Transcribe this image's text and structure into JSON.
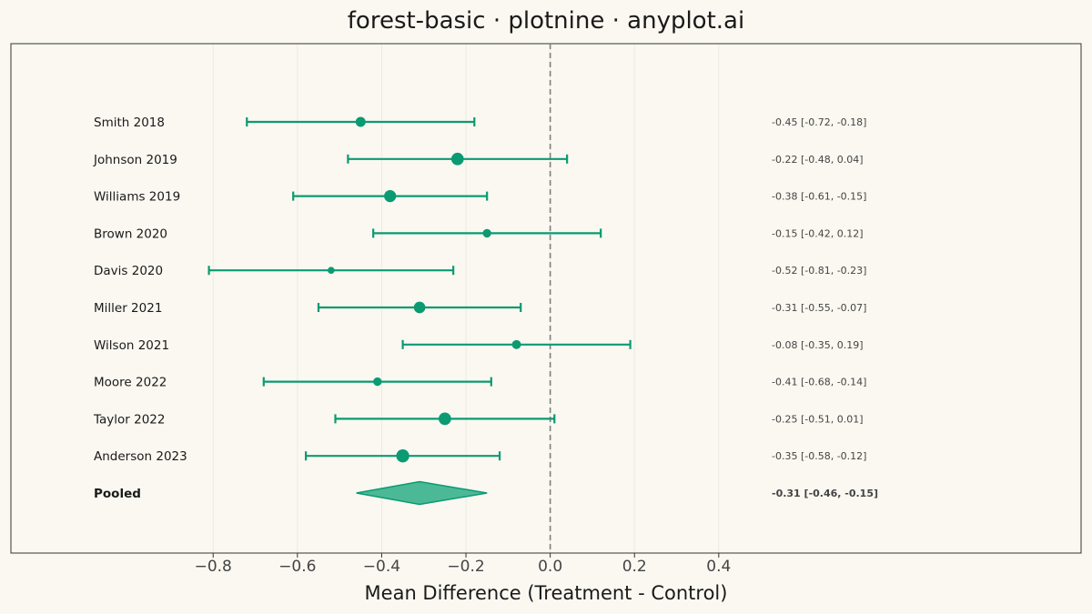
{
  "chart_data": {
    "type": "forest",
    "title": "forest-basic · plotnine · anyplot.ai",
    "xlabel": "Mean Difference (Treatment - Control)",
    "xlim": [
      -1.28,
      1.26
    ],
    "x_ticks": [
      -0.8,
      -0.6,
      -0.4,
      -0.2,
      0.0,
      0.2,
      0.4
    ],
    "x_tick_labels": [
      "−0.8",
      "−0.6",
      "−0.4",
      "−0.2",
      "0.0",
      "0.2",
      "0.4"
    ],
    "reference_line": 0.0,
    "grid": "vertical",
    "studies": [
      {
        "name": "Smith 2018",
        "estimate": -0.45,
        "lower": -0.72,
        "upper": -0.18,
        "weight": 1.0,
        "ci_label": "-0.45 [-0.72, -0.18]"
      },
      {
        "name": "Johnson 2019",
        "estimate": -0.22,
        "lower": -0.48,
        "upper": 0.04,
        "weight": 1.25,
        "ci_label": "-0.22 [-0.48, 0.04]"
      },
      {
        "name": "Williams 2019",
        "estimate": -0.38,
        "lower": -0.61,
        "upper": -0.15,
        "weight": 1.2,
        "ci_label": "-0.38 [-0.61, -0.15]"
      },
      {
        "name": "Brown 2020",
        "estimate": -0.15,
        "lower": -0.42,
        "upper": 0.12,
        "weight": 0.85,
        "ci_label": "-0.15 [-0.42, 0.12]"
      },
      {
        "name": "Davis 2020",
        "estimate": -0.52,
        "lower": -0.81,
        "upper": -0.23,
        "weight": 0.7,
        "ci_label": "-0.52 [-0.81, -0.23]"
      },
      {
        "name": "Miller 2021",
        "estimate": -0.31,
        "lower": -0.55,
        "upper": -0.07,
        "weight": 1.15,
        "ci_label": "-0.31 [-0.55, -0.07]"
      },
      {
        "name": "Wilson 2021",
        "estimate": -0.08,
        "lower": -0.35,
        "upper": 0.19,
        "weight": 0.9,
        "ci_label": "-0.08 [-0.35, 0.19]"
      },
      {
        "name": "Moore 2022",
        "estimate": -0.41,
        "lower": -0.68,
        "upper": -0.14,
        "weight": 0.85,
        "ci_label": "-0.41 [-0.68, -0.14]"
      },
      {
        "name": "Taylor 2022",
        "estimate": -0.25,
        "lower": -0.51,
        "upper": 0.01,
        "weight": 1.25,
        "ci_label": "-0.25 [-0.51, 0.01]"
      },
      {
        "name": "Anderson 2023",
        "estimate": -0.35,
        "lower": -0.58,
        "upper": -0.12,
        "weight": 1.3,
        "ci_label": "-0.35 [-0.58, -0.12]"
      }
    ],
    "pooled": {
      "name": "Pooled",
      "estimate": -0.31,
      "lower": -0.46,
      "upper": -0.15,
      "ci_label": "-0.31 [-0.46, -0.15]"
    },
    "colors": {
      "marker": "#0B9A72",
      "diamond_fill": "#4CB996",
      "reference": "#7F7F7F",
      "grid": "#EDEAE2",
      "panel_border": "#333333",
      "background": "#FAF8F1"
    }
  }
}
